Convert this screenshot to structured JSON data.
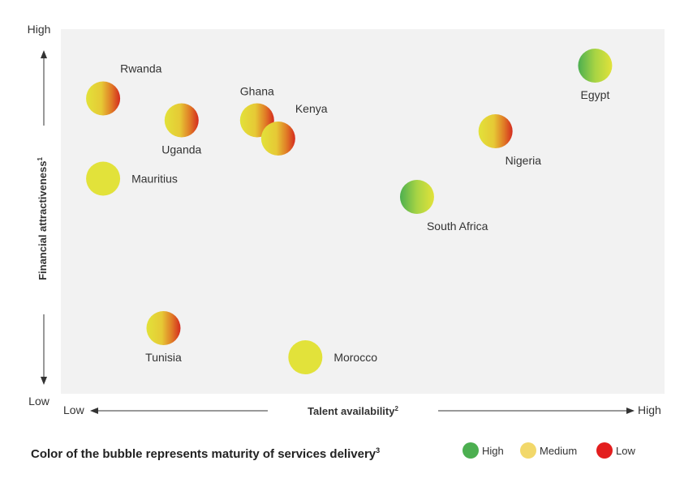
{
  "chart_data": {
    "type": "scatter",
    "xlabel": "Talent availability",
    "xlabel_sup": "2",
    "ylabel": "Financial attractiveness",
    "ylabel_sup": "1",
    "x_low_label": "Low",
    "x_high_label": "High",
    "y_low_label": "Low",
    "y_high_label": "High",
    "xlim": [
      0,
      100
    ],
    "ylim": [
      0,
      100
    ],
    "grid": false,
    "points": [
      {
        "label": "Rwanda",
        "x": 7,
        "y": 81,
        "maturity": "medium-low",
        "label_pos": "above-right"
      },
      {
        "label": "Uganda",
        "x": 20,
        "y": 75,
        "maturity": "medium-low",
        "label_pos": "below"
      },
      {
        "label": "Ghana",
        "x": 32.5,
        "y": 75,
        "maturity": "medium-low",
        "label_pos": "above"
      },
      {
        "label": "Kenya",
        "x": 36,
        "y": 70,
        "maturity": "medium-low",
        "label_pos": "above-right"
      },
      {
        "label": "Mauritius",
        "x": 7,
        "y": 59,
        "maturity": "medium",
        "label_pos": "right"
      },
      {
        "label": "Egypt",
        "x": 88.5,
        "y": 90,
        "maturity": "high-medium",
        "label_pos": "below"
      },
      {
        "label": "Nigeria",
        "x": 72,
        "y": 72,
        "maturity": "medium-low",
        "label_pos": "below-right"
      },
      {
        "label": "South Africa",
        "x": 59,
        "y": 54,
        "maturity": "high-medium",
        "label_pos": "below-right"
      },
      {
        "label": "Tunisia",
        "x": 17,
        "y": 18,
        "maturity": "medium-low",
        "label_pos": "below"
      },
      {
        "label": "Morocco",
        "x": 40.5,
        "y": 10,
        "maturity": "medium",
        "label_pos": "right"
      }
    ],
    "legend": {
      "title": "Color of the bubble represents maturity of services delivery",
      "title_sup": "3",
      "placement": "bottom",
      "items": [
        {
          "label": "High",
          "color": "#4caf50"
        },
        {
          "label": "Medium",
          "color": "#f2d86a"
        },
        {
          "label": "Low",
          "color": "#e31e1e"
        }
      ]
    },
    "colors": {
      "plot_background": "#f2f2f2",
      "green": "#4caf50",
      "yellow": "#e2e23a",
      "red": "#d42a1e",
      "axis": "#333333"
    }
  }
}
